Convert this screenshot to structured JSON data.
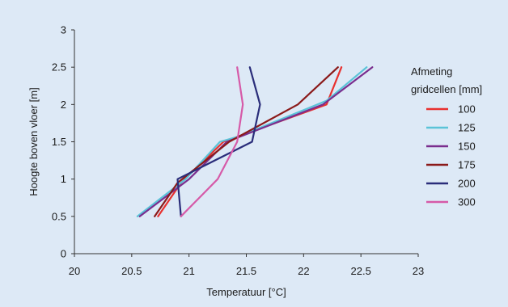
{
  "chart_data": {
    "type": "line",
    "title": "",
    "xlabel": "Temperatuur [°C]",
    "ylabel": "Hoogte boven vloer [m]",
    "xlim": [
      20,
      23
    ],
    "ylim": [
      0,
      3
    ],
    "xticks": [
      "20",
      "20.5",
      "21",
      "21.5",
      "22",
      "22.5",
      "23"
    ],
    "yticks": [
      "0",
      "0.5",
      "1",
      "1.5",
      "2",
      "2.5",
      "3"
    ],
    "grid": false,
    "legend": {
      "placement": "right",
      "title_line1": "Afmeting",
      "title_line2": "gridcellen [mm]"
    },
    "series": [
      {
        "name": "100",
        "color": "#e8312f",
        "points": [
          [
            20.73,
            0.5
          ],
          [
            20.93,
            0.95
          ],
          [
            21.3,
            1.5
          ],
          [
            22.2,
            2.0
          ],
          [
            22.33,
            2.5
          ]
        ]
      },
      {
        "name": "125",
        "color": "#5bc3d8",
        "points": [
          [
            20.55,
            0.5
          ],
          [
            20.97,
            1.0
          ],
          [
            21.27,
            1.5
          ],
          [
            21.43,
            1.57
          ],
          [
            22.2,
            2.05
          ],
          [
            22.55,
            2.5
          ]
        ]
      },
      {
        "name": "150",
        "color": "#7a2e8e",
        "points": [
          [
            20.57,
            0.5
          ],
          [
            21.0,
            1.0
          ],
          [
            21.33,
            1.5
          ],
          [
            22.17,
            2.0
          ],
          [
            22.6,
            2.5
          ]
        ]
      },
      {
        "name": "175",
        "color": "#8b1a1a",
        "points": [
          [
            20.7,
            0.5
          ],
          [
            20.9,
            0.95
          ],
          [
            21.35,
            1.5
          ],
          [
            21.95,
            2.0
          ],
          [
            22.3,
            2.5
          ]
        ]
      },
      {
        "name": "200",
        "color": "#2a2d7a",
        "points": [
          [
            20.93,
            0.5
          ],
          [
            20.9,
            1.0
          ],
          [
            21.55,
            1.5
          ],
          [
            21.62,
            2.0
          ],
          [
            21.53,
            2.5
          ]
        ]
      },
      {
        "name": "300",
        "color": "#d65aa8",
        "points": [
          [
            20.93,
            0.5
          ],
          [
            21.25,
            1.0
          ],
          [
            21.42,
            1.5
          ],
          [
            21.47,
            2.0
          ],
          [
            21.42,
            2.5
          ]
        ]
      }
    ]
  }
}
